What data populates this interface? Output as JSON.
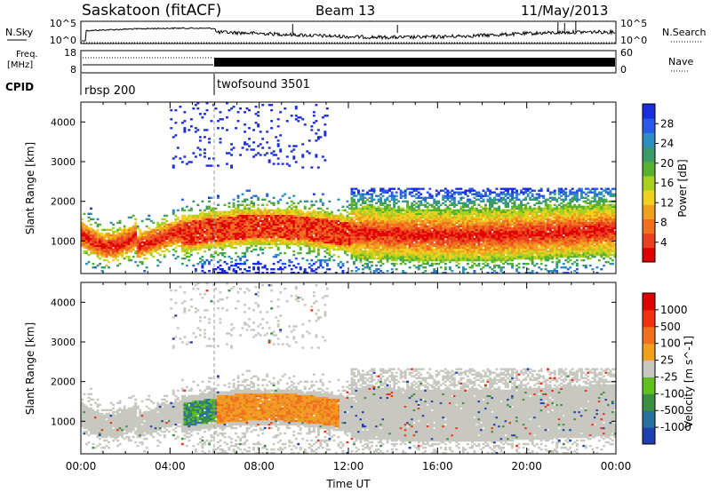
{
  "header": {
    "title": "Saskatoon (fitACF)",
    "beam": "Beam 13",
    "date": "11/May/2013"
  },
  "side_labels": {
    "nsky": "N.Sky",
    "nsearch": "N.Search",
    "freq": "Freq.",
    "freq_unit": "[MHz]",
    "nave": "Nave",
    "cpid": "CPID"
  },
  "noise_panel": {
    "left_ticks": [
      "10^5",
      "10^0"
    ],
    "right_ticks": [
      "10^5",
      "10^0"
    ]
  },
  "freq_panel": {
    "left_ticks": [
      "18",
      "8"
    ],
    "right_ticks": [
      "60",
      "0"
    ]
  },
  "cpid_panel": {
    "programs": [
      {
        "name": "rbsp 200",
        "start_hour": 0
      },
      {
        "name": "twofsound 3501",
        "start_hour": 6
      }
    ]
  },
  "chart_data": [
    {
      "type": "heatmap",
      "quantity": "power",
      "ylabel": "Slant Range [km]",
      "ylim": [
        180,
        4500
      ],
      "yticks": [
        1000,
        2000,
        3000,
        4000
      ],
      "xlim": [
        0,
        24
      ],
      "colorbar_label": "Power [dB]",
      "colorbar_ticks": [
        "4",
        "8",
        "12",
        "16",
        "20",
        "24",
        "28"
      ],
      "colorscale": [
        "#1a2ee0",
        "#2a5be8",
        "#2f8ec0",
        "#3a9a6a",
        "#58b030",
        "#a8d020",
        "#f0d020",
        "#f0a020",
        "#f07020",
        "#e84020",
        "#e00000"
      ]
    },
    {
      "type": "heatmap",
      "quantity": "velocity",
      "ylabel": "Slant Range [km]",
      "ylim": [
        180,
        4500
      ],
      "yticks": [
        1000,
        2000,
        3000,
        4000
      ],
      "xlim": [
        0,
        24
      ],
      "xticks": [
        "00:00",
        "04:00",
        "08:00",
        "12:00",
        "16:00",
        "20:00",
        "00:00"
      ],
      "xlabel": "Time UT",
      "colorbar_label": "Velocity [m s^-1]",
      "colorbar_ticks": [
        "1000",
        "500",
        "100",
        "25",
        "-25",
        "-100",
        "-500",
        "-1000"
      ],
      "colorscale": [
        "#2040b0",
        "#2a70a0",
        "#3a9040",
        "#60c020",
        "#c8c8c0",
        "#f0a020",
        "#f07020",
        "#f03010",
        "#e00000"
      ]
    }
  ]
}
